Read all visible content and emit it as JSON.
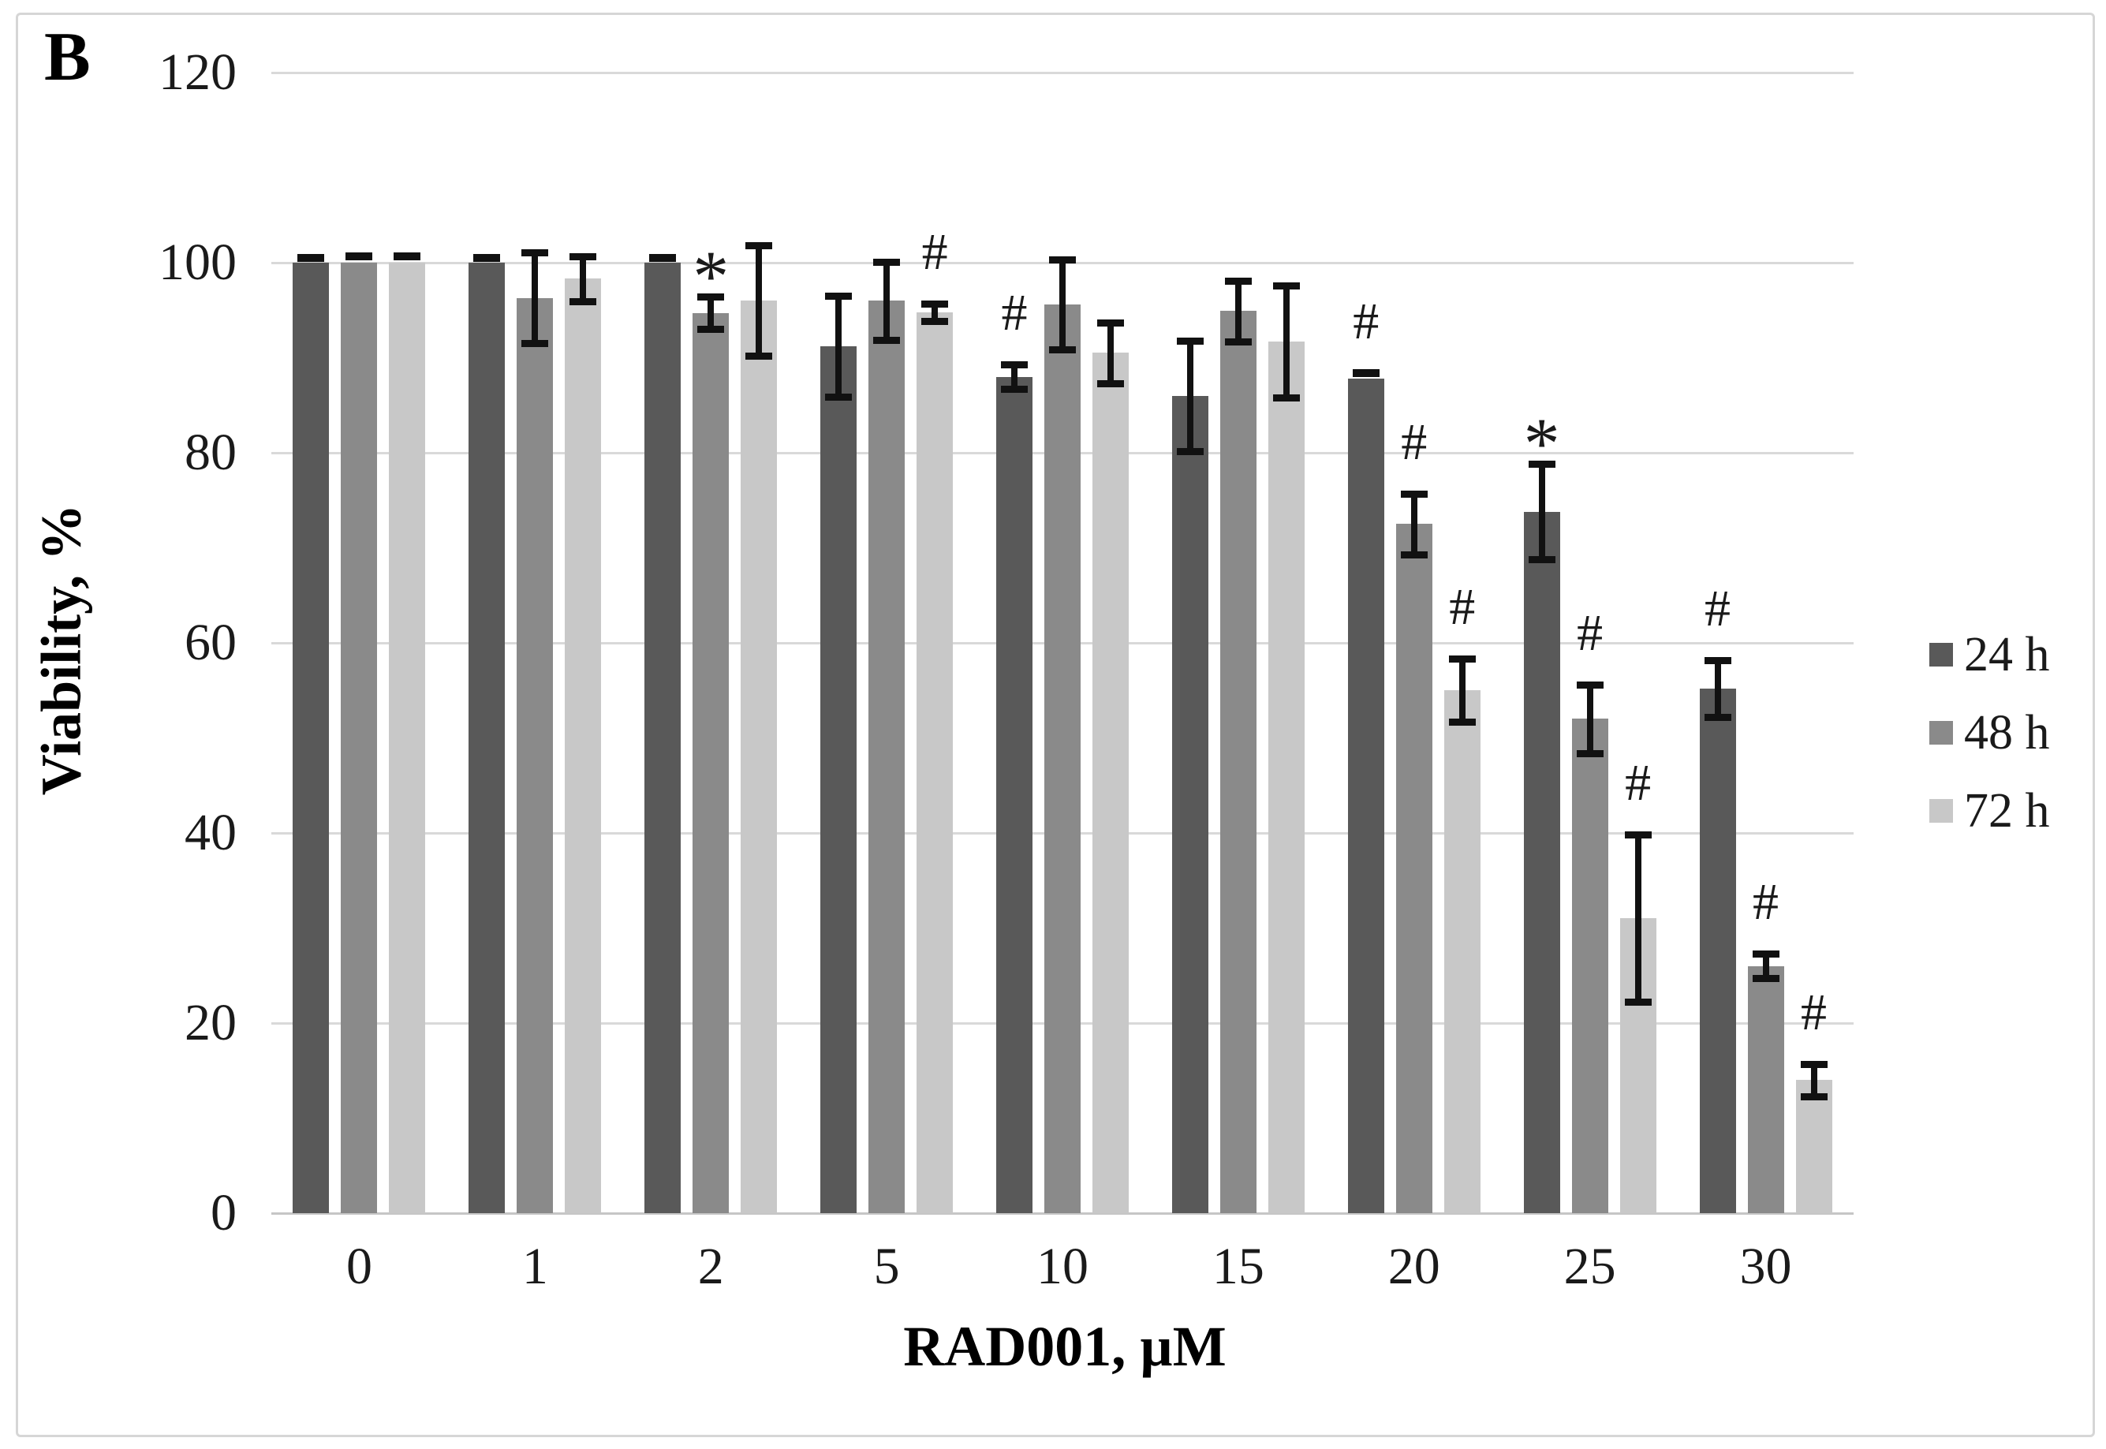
{
  "panel_label": "B",
  "chart_data": {
    "type": "bar",
    "title": "",
    "xlabel": "RAD001, µM",
    "ylabel": "Viability, %",
    "ylim": [
      0,
      120
    ],
    "yticks": [
      0,
      20,
      40,
      60,
      80,
      100,
      120
    ],
    "grid": "horizontal",
    "legend_position": "right",
    "categories": [
      "0",
      "1",
      "2",
      "5",
      "10",
      "15",
      "20",
      "25",
      "30"
    ],
    "series": [
      {
        "name": "24 h",
        "color": "#595959",
        "values": [
          100,
          100,
          100,
          91.2,
          88,
          86,
          87.8,
          73.8,
          55.2
        ],
        "errors": [
          0.5,
          0.5,
          0.5,
          5.3,
          1.3,
          5.8,
          0.6,
          5.0,
          3.0
        ],
        "annotations": [
          "",
          "",
          "",
          "",
          "#",
          "",
          "#",
          "*",
          "#"
        ]
      },
      {
        "name": "48 h",
        "color": "#8a8a8a",
        "values": [
          100,
          96.3,
          94.7,
          96,
          95.6,
          94.9,
          72.5,
          52,
          26
        ],
        "errors": [
          0.7,
          4.8,
          1.7,
          4.1,
          4.7,
          3.2,
          3.2,
          3.6,
          1.3
        ],
        "annotations": [
          "",
          "",
          "*",
          "",
          "",
          "",
          "#",
          "#",
          "#"
        ]
      },
      {
        "name": "72 h",
        "color": "#c8c8c8",
        "values": [
          100,
          98.3,
          96,
          94.8,
          90.5,
          91.7,
          55,
          31,
          14
        ],
        "errors": [
          0.7,
          2.4,
          5.8,
          0.9,
          3.2,
          5.9,
          3.3,
          8.8,
          1.7
        ],
        "annotations": [
          "",
          "",
          "",
          "#",
          "",
          "",
          "#",
          "#",
          "#"
        ]
      }
    ]
  },
  "legend": {
    "items": [
      {
        "label": "24 h",
        "color": "#595959"
      },
      {
        "label": "48 h",
        "color": "#8a8a8a"
      },
      {
        "label": "72 h",
        "color": "#c8c8c8"
      }
    ]
  },
  "colors": {
    "gridline": "#d9d9d9",
    "axis_line": "#c6c6c6",
    "error_bar": "#111111",
    "figure_border": "#d6d6d6",
    "background": "#ffffff"
  }
}
